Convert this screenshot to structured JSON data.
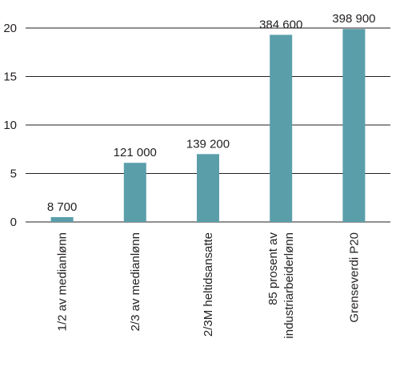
{
  "chart_data": {
    "type": "bar",
    "title": "",
    "xlabel": "",
    "ylabel": "",
    "ylim": [
      0,
      20
    ],
    "yticks": [
      "0",
      "5",
      "10",
      "15",
      "20"
    ],
    "grid": true,
    "bar_color": "#5a9eaa",
    "categories": [
      [
        "1/2 av medianlønn"
      ],
      [
        "2/3 av medianlønn"
      ],
      [
        "2/3M heltidsansatte"
      ],
      [
        "85  prosent av",
        "industriarbeiderlønn"
      ],
      [
        "Grenseverdi P20"
      ]
    ],
    "values": [
      0.5,
      6.1,
      7.0,
      19.3,
      19.9
    ],
    "data_labels": [
      "8 700",
      "121 000",
      "139 200",
      "384 600",
      "398 900"
    ]
  }
}
